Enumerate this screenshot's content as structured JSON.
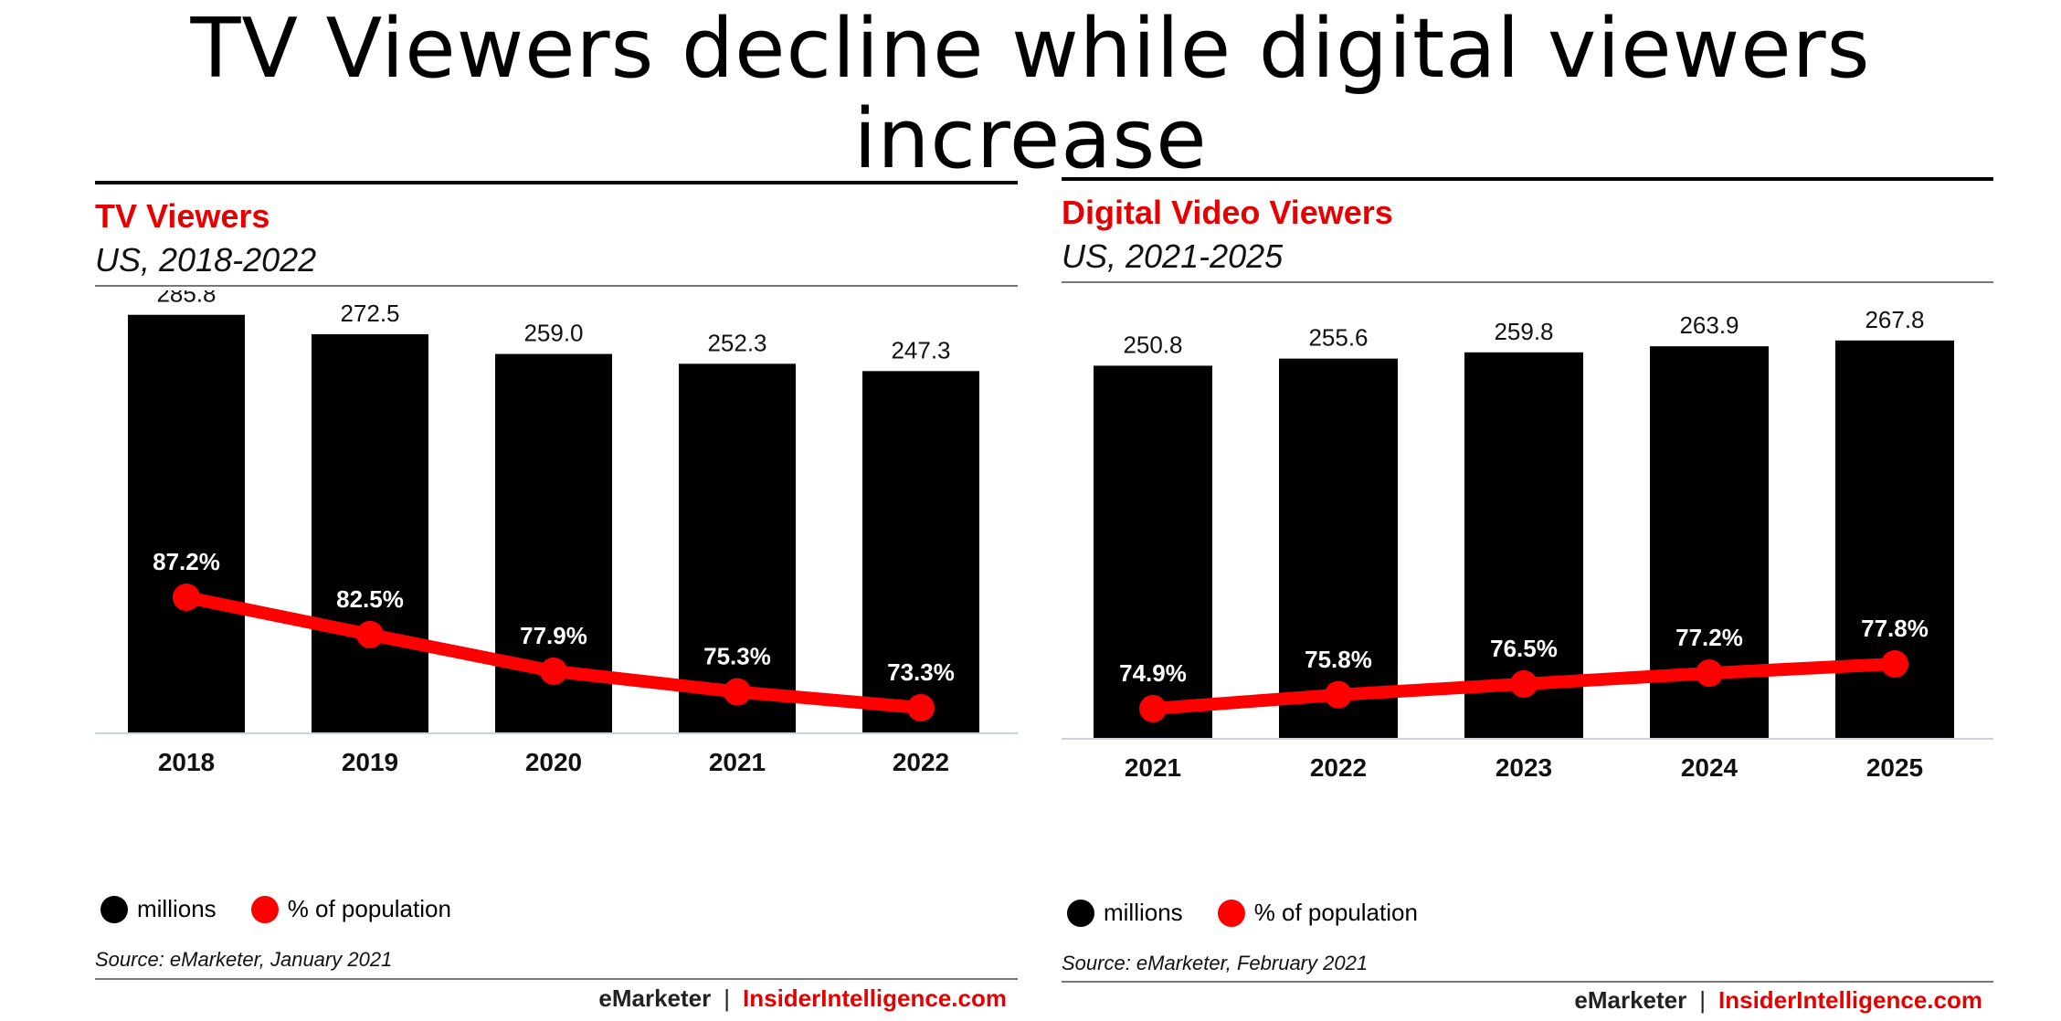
{
  "page": {
    "title": "TV Viewers decline while digital viewers increase"
  },
  "colors": {
    "bar": "#000000",
    "line": "#ff0000",
    "title_accent": "#e60000"
  },
  "legend": {
    "bars_label": "millions",
    "line_label": "% of population"
  },
  "brand": {
    "emarketer": "eMarketer",
    "separator": "|",
    "insider": "InsiderIntelligence.com"
  },
  "chart_data": [
    {
      "type": "bar",
      "title": "TV Viewers",
      "subtitle": "US, 2018-2022",
      "categories": [
        "2018",
        "2019",
        "2020",
        "2021",
        "2022"
      ],
      "series": [
        {
          "name": "millions",
          "type": "bar",
          "values": [
            285.8,
            272.5,
            259.0,
            252.3,
            247.3
          ],
          "labels": [
            "285.8",
            "272.5",
            "259.0",
            "252.3",
            "247.3"
          ]
        },
        {
          "name": "% of population",
          "type": "line",
          "values": [
            87.2,
            82.5,
            77.9,
            75.3,
            73.3
          ],
          "labels": [
            "87.2%",
            "82.5%",
            "77.9%",
            "75.3%",
            "73.3%"
          ]
        }
      ],
      "source": "Source: eMarketer, January 2021",
      "legend_position": "bottom-left"
    },
    {
      "type": "bar",
      "title": "Digital Video Viewers",
      "subtitle": "US, 2021-2025",
      "categories": [
        "2021",
        "2022",
        "2023",
        "2024",
        "2025"
      ],
      "series": [
        {
          "name": "millions",
          "type": "bar",
          "values": [
            250.8,
            255.6,
            259.8,
            263.9,
            267.8
          ],
          "labels": [
            "250.8",
            "255.6",
            "259.8",
            "263.9",
            "267.8"
          ]
        },
        {
          "name": "% of population",
          "type": "line",
          "values": [
            74.9,
            75.8,
            76.5,
            77.2,
            77.8
          ],
          "labels": [
            "74.9%",
            "75.8%",
            "76.5%",
            "77.2%",
            "77.8%"
          ]
        }
      ],
      "source": "Source: eMarketer, February 2021",
      "legend_position": "bottom-left"
    }
  ]
}
